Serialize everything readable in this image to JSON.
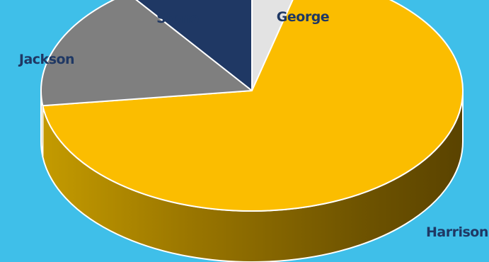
{
  "chart_data": {
    "type": "pie",
    "style": "3d",
    "title": "",
    "start_angle_deg": 0,
    "direction": "clockwise",
    "slices": [
      {
        "label": "George",
        "value": 4,
        "color": "#e3e3e3"
      },
      {
        "label": "Harrison",
        "value": 69,
        "color": "#fbbd00"
      },
      {
        "label": "Jackson",
        "value": 17,
        "color": "#7f7f7f"
      },
      {
        "label": "Stone",
        "value": 10,
        "color": "#1f3864"
      }
    ],
    "label_color": "#1f3864",
    "legend": "none"
  }
}
